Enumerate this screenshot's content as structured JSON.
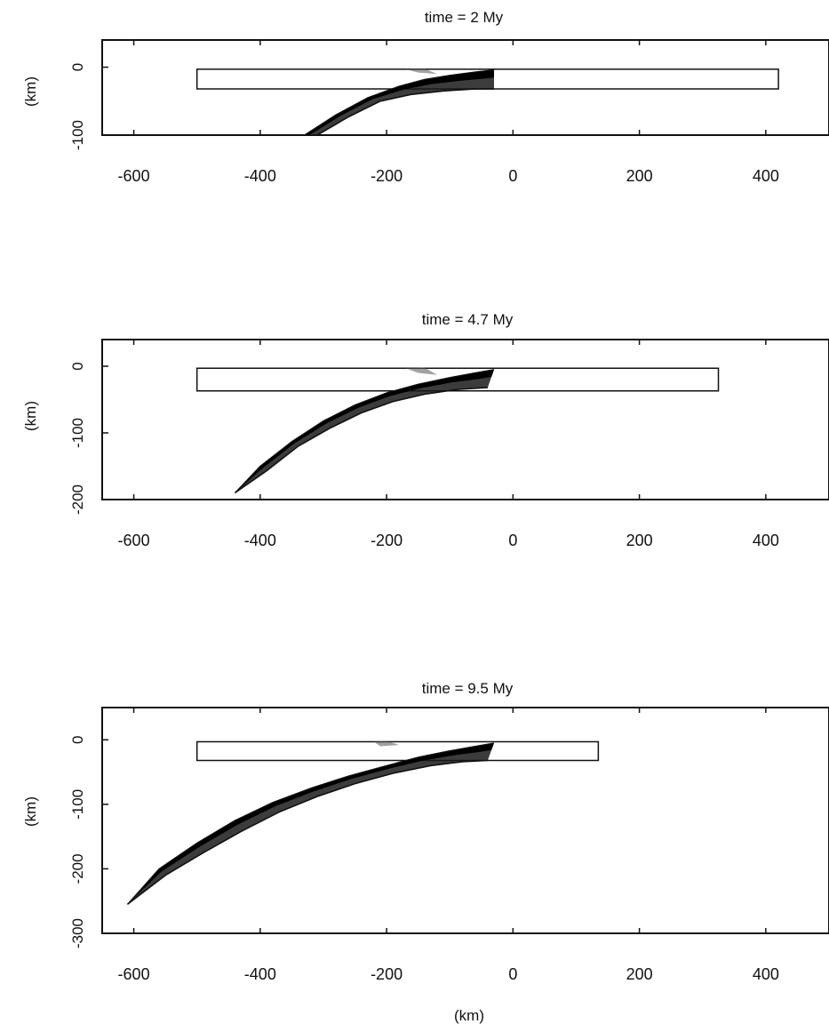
{
  "xlabel": "(km)",
  "chart_data": [
    {
      "type": "line",
      "title": "time = 2 My",
      "ylabel": "(km)",
      "xlim": [
        -650,
        500
      ],
      "ylim": [
        -100,
        40
      ],
      "x_ticks": [
        -600,
        -400,
        -200,
        0,
        200,
        400
      ],
      "y_ticks": [
        0,
        -100
      ],
      "plate_box": {
        "x": [
          -500,
          420
        ],
        "y": [
          -3,
          -32
        ]
      },
      "slab_upper": [
        [
          -330,
          -100
        ],
        [
          -280,
          -70
        ],
        [
          -230,
          -45
        ],
        [
          -180,
          -28
        ],
        [
          -140,
          -18
        ],
        [
          -100,
          -12
        ],
        [
          -60,
          -7
        ],
        [
          -30,
          -4
        ]
      ],
      "slab_lower": [
        [
          -310,
          -100
        ],
        [
          -260,
          -73
        ],
        [
          -210,
          -50
        ],
        [
          -160,
          -40
        ],
        [
          -110,
          -35
        ],
        [
          -60,
          -32
        ],
        [
          -30,
          -32
        ]
      ],
      "wedge": [
        [
          -170,
          -3
        ],
        [
          -140,
          -2
        ],
        [
          -120,
          -10
        ],
        [
          -150,
          -8
        ]
      ]
    },
    {
      "type": "line",
      "title": "time = 4.7 My",
      "ylabel": "(km)",
      "xlim": [
        -650,
        500
      ],
      "ylim": [
        -200,
        40
      ],
      "x_ticks": [
        -600,
        -400,
        -200,
        0,
        200,
        400
      ],
      "y_ticks": [
        0,
        -100,
        -200
      ],
      "plate_box": {
        "x": [
          -500,
          325
        ],
        "y": [
          -3,
          -37
        ]
      },
      "slab_upper": [
        [
          -440,
          -190
        ],
        [
          -400,
          -150
        ],
        [
          -350,
          -113
        ],
        [
          -300,
          -82
        ],
        [
          -250,
          -58
        ],
        [
          -200,
          -40
        ],
        [
          -150,
          -27
        ],
        [
          -100,
          -17
        ],
        [
          -60,
          -10
        ],
        [
          -30,
          -5
        ]
      ],
      "slab_lower": [
        [
          -440,
          -190
        ],
        [
          -390,
          -157
        ],
        [
          -340,
          -120
        ],
        [
          -290,
          -93
        ],
        [
          -240,
          -70
        ],
        [
          -190,
          -53
        ],
        [
          -140,
          -42
        ],
        [
          -90,
          -35
        ],
        [
          -40,
          -32
        ]
      ],
      "wedge": [
        [
          -170,
          -3
        ],
        [
          -140,
          -2
        ],
        [
          -120,
          -13
        ],
        [
          -150,
          -10
        ]
      ]
    },
    {
      "type": "line",
      "title": "time = 9.5 My",
      "ylabel": "(km)",
      "xlim": [
        -650,
        500
      ],
      "ylim": [
        -300,
        50
      ],
      "x_ticks": [
        -600,
        -400,
        -200,
        0,
        200,
        400
      ],
      "y_ticks": [
        0,
        -100,
        -200,
        -300
      ],
      "plate_box": {
        "x": [
          -500,
          135
        ],
        "y": [
          -3,
          -32
        ]
      },
      "slab_upper": [
        [
          -610,
          -255
        ],
        [
          -560,
          -200
        ],
        [
          -500,
          -160
        ],
        [
          -440,
          -125
        ],
        [
          -380,
          -97
        ],
        [
          -320,
          -75
        ],
        [
          -260,
          -56
        ],
        [
          -200,
          -40
        ],
        [
          -150,
          -27
        ],
        [
          -100,
          -17
        ],
        [
          -60,
          -10
        ],
        [
          -30,
          -5
        ]
      ],
      "slab_lower": [
        [
          -610,
          -255
        ],
        [
          -550,
          -210
        ],
        [
          -490,
          -175
        ],
        [
          -430,
          -142
        ],
        [
          -370,
          -112
        ],
        [
          -310,
          -88
        ],
        [
          -250,
          -68
        ],
        [
          -190,
          -52
        ],
        [
          -130,
          -40
        ],
        [
          -80,
          -34
        ],
        [
          -40,
          -32
        ]
      ],
      "wedge": [
        [
          -220,
          -3
        ],
        [
          -200,
          -2
        ],
        [
          -180,
          -8
        ],
        [
          -210,
          -10
        ]
      ]
    }
  ]
}
